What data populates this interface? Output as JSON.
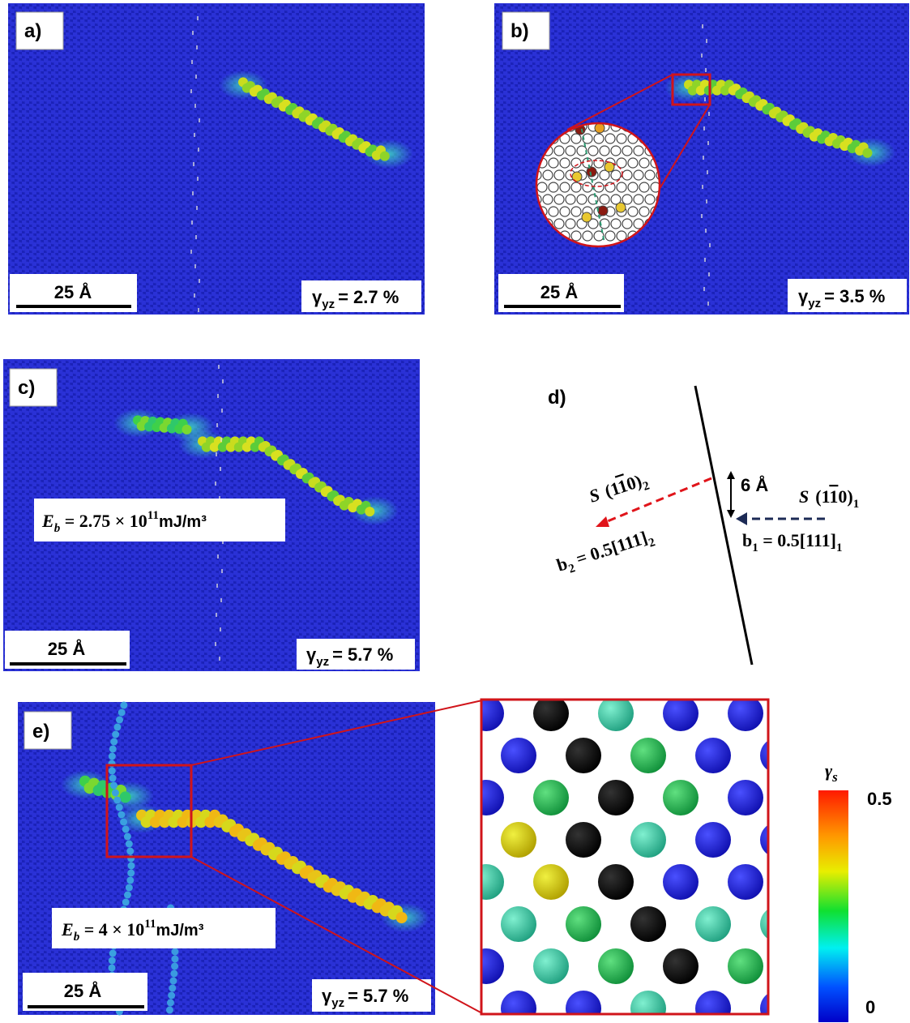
{
  "panel_a": {
    "label": "a)",
    "scale_bar": "25 Å",
    "strain": {
      "symbol": "γ",
      "subscript": "yz",
      "value": "= 2.7 %"
    }
  },
  "panel_b": {
    "label": "b)",
    "scale_bar": "25 Å",
    "strain": {
      "symbol": "γ",
      "subscript": "yz",
      "value": "= 3.5 %"
    }
  },
  "panel_c": {
    "label": "c)",
    "scale_bar": "25 Å",
    "strain": {
      "symbol": "γ",
      "subscript": "yz",
      "value": "= 5.7 %"
    },
    "energy": {
      "symbol": "E",
      "subscript": "b",
      "text": " = 2.75 × 10",
      "exponent": "11",
      "unit": "mJ/m³"
    }
  },
  "panel_d": {
    "label": "d)",
    "spacing": "6 Å",
    "plane_2": {
      "symbol": "S",
      "open": "(1",
      "bar_digit": "1",
      "close": "0)",
      "subscript": "2"
    },
    "burgers_2": {
      "symbol": "b",
      "subscript": "2",
      "text": " = 0.5[111]",
      "end_subscript": "2"
    },
    "plane_1": {
      "symbol": "S",
      "open": "(1",
      "bar_digit": "1",
      "close": "0)",
      "subscript": "1"
    },
    "burgers_1": {
      "symbol": "b",
      "subscript": "1",
      "text": " = 0.5[111]",
      "end_subscript": "1"
    }
  },
  "panel_e": {
    "label": "e)",
    "scale_bar": "25 Å",
    "strain": {
      "symbol": "γ",
      "subscript": "yz",
      "value": "= 5.7 %"
    },
    "energy": {
      "symbol": "E",
      "subscript": "b",
      "text": " = 4 × 10",
      "exponent": "11",
      "unit": "mJ/m³"
    }
  },
  "colorbar": {
    "symbol": "γ",
    "subscript": "s",
    "max_label": "0.5",
    "min_label": "0"
  }
}
